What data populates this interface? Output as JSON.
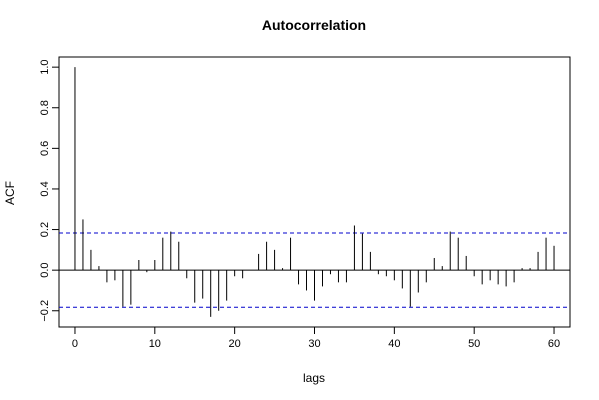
{
  "chart_data": {
    "type": "bar",
    "title": "Autocorrelation",
    "xlabel": "lags",
    "ylabel": "ACF",
    "xlim": [
      -2,
      62
    ],
    "ylim": [
      -0.28,
      1.05
    ],
    "x_ticks": [
      0,
      10,
      20,
      30,
      40,
      50,
      60
    ],
    "x_tick_labels": [
      "0",
      "10",
      "20",
      "30",
      "40",
      "50",
      "60"
    ],
    "y_ticks": [
      -0.2,
      0.0,
      0.2,
      0.4,
      0.6,
      0.8,
      1.0
    ],
    "y_tick_labels": [
      "−0.2",
      "0.0",
      "0.2",
      "0.4",
      "0.6",
      "0.8",
      "1.0"
    ],
    "confidence_bound": 0.183,
    "grid": false,
    "legend": "none",
    "colors": {
      "bars": "#000000",
      "zero_line": "#000000",
      "confidence": "#0000cc"
    },
    "lags": [
      0,
      1,
      2,
      3,
      4,
      5,
      6,
      7,
      8,
      9,
      10,
      11,
      12,
      13,
      14,
      15,
      16,
      17,
      18,
      19,
      20,
      21,
      22,
      23,
      24,
      25,
      26,
      27,
      28,
      29,
      30,
      31,
      32,
      33,
      34,
      35,
      36,
      37,
      38,
      39,
      40,
      41,
      42,
      43,
      44,
      45,
      46,
      47,
      48,
      49,
      50,
      51,
      52,
      53,
      54,
      55,
      56,
      57,
      58,
      59,
      60
    ],
    "values": [
      1.0,
      0.25,
      0.1,
      0.02,
      -0.06,
      -0.05,
      -0.18,
      -0.17,
      0.05,
      -0.01,
      0.05,
      0.16,
      0.19,
      0.14,
      -0.04,
      -0.16,
      -0.14,
      -0.23,
      -0.2,
      -0.15,
      -0.03,
      -0.04,
      0.0,
      0.08,
      0.14,
      0.1,
      0.01,
      0.16,
      -0.07,
      -0.1,
      -0.15,
      -0.08,
      -0.02,
      -0.06,
      -0.06,
      0.22,
      0.18,
      0.09,
      -0.02,
      -0.03,
      -0.05,
      -0.09,
      -0.18,
      -0.11,
      -0.06,
      0.06,
      0.02,
      0.19,
      0.16,
      0.07,
      -0.03,
      -0.07,
      -0.05,
      -0.07,
      -0.08,
      -0.06,
      0.01,
      0.01,
      0.09,
      0.16,
      0.12
    ]
  }
}
